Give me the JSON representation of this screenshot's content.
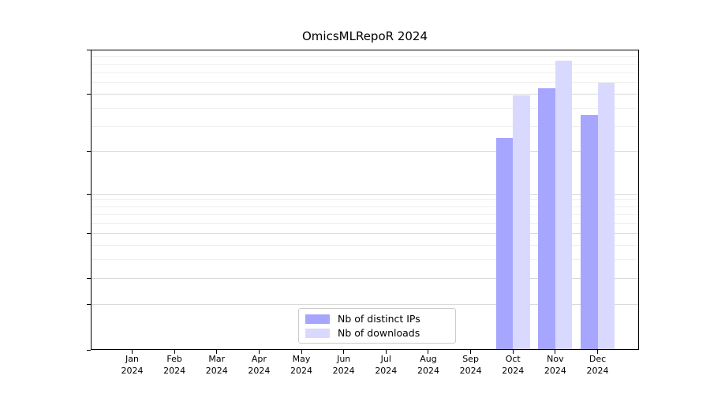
{
  "chart_data": {
    "type": "bar",
    "title": "OmicsMLRepoR 2024",
    "categories": [
      "Jan",
      "Feb",
      "Mar",
      "Apr",
      "May",
      "Jun",
      "Jul",
      "Aug",
      "Sep",
      "Oct",
      "Nov",
      "Dec"
    ],
    "category_year": "2024",
    "series": [
      {
        "name": "Nb of distinct IPs",
        "color": "#a6a6ff",
        "values": [
          0,
          0,
          0,
          0,
          0,
          0,
          0,
          0,
          0,
          25,
          55,
          36
        ]
      },
      {
        "name": "Nb of downloads",
        "color": "#d9d9ff",
        "values": [
          0,
          0,
          0,
          0,
          0,
          0,
          0,
          0,
          0,
          49,
          84,
          60
        ]
      }
    ],
    "yscale": "log1p",
    "ylim": [
      0,
      100
    ],
    "yticks": [
      0,
      1,
      2,
      5,
      10,
      20,
      50,
      100
    ],
    "yticks_minor": [
      3,
      4,
      6,
      7,
      8,
      9,
      30,
      40,
      60,
      70,
      80,
      90
    ],
    "grid": true,
    "legend_position": "lower center",
    "xlabel": "",
    "ylabel": ""
  },
  "colors": {
    "major_grid": "#d9d9d9",
    "minor_grid": "#efefef",
    "axis": "#000000",
    "background": "#ffffff",
    "legend_border": "#cccccc",
    "bar_distinct_ips": "#a6a6ff",
    "bar_downloads": "#d9d9ff"
  }
}
